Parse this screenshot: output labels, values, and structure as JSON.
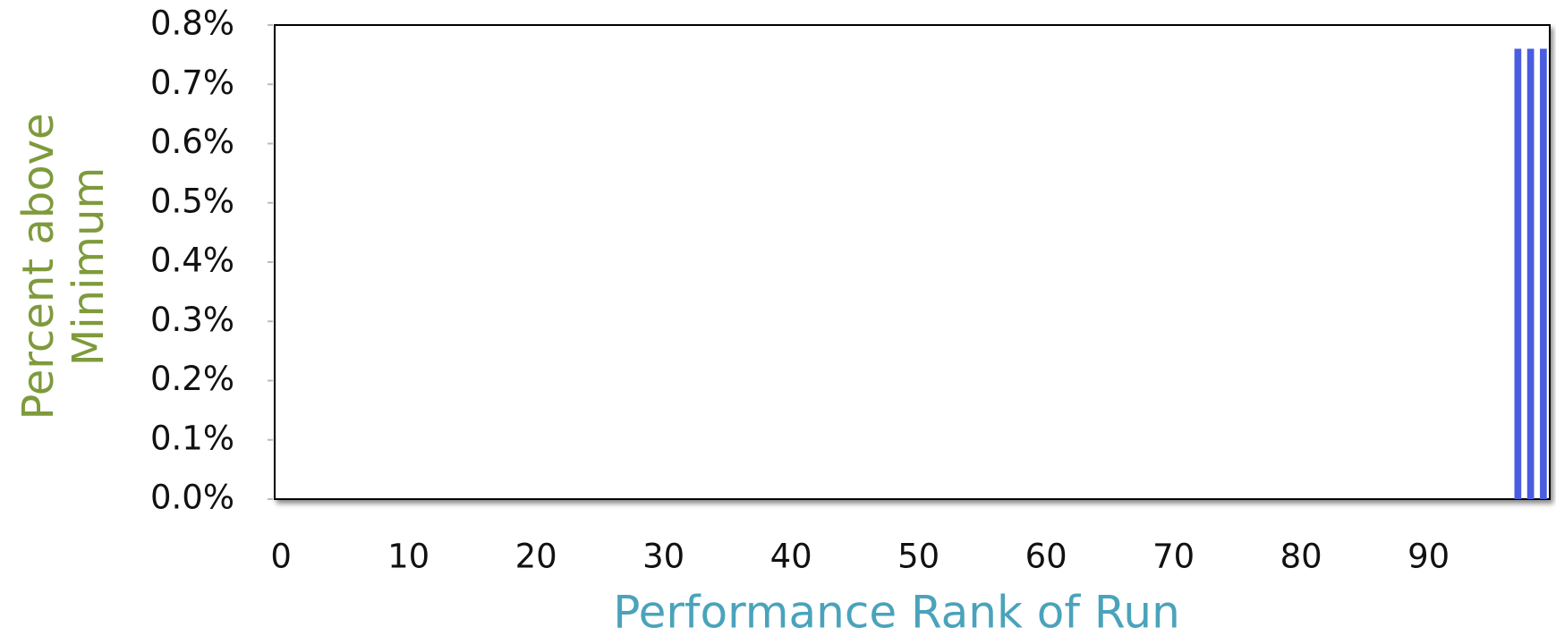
{
  "chart_data": {
    "type": "bar",
    "x_label": "Performance Rank of Run",
    "y_label": [
      "Percent above",
      "Minimum"
    ],
    "x": [
      0,
      1,
      2,
      3,
      4,
      5,
      6,
      7,
      8,
      9,
      10,
      11,
      12,
      13,
      14,
      15,
      16,
      17,
      18,
      19,
      20,
      21,
      22,
      23,
      24,
      25,
      26,
      27,
      28,
      29,
      30,
      31,
      32,
      33,
      34,
      35,
      36,
      37,
      38,
      39,
      40,
      41,
      42,
      43,
      44,
      45,
      46,
      47,
      48,
      49,
      50,
      51,
      52,
      53,
      54,
      55,
      56,
      57,
      58,
      59,
      60,
      61,
      62,
      63,
      64,
      65,
      66,
      67,
      68,
      69,
      70,
      71,
      72,
      73,
      74,
      75,
      76,
      77,
      78,
      79,
      80,
      81,
      82,
      83,
      84,
      85,
      86,
      87,
      88,
      89,
      90,
      91,
      92,
      93,
      94,
      95,
      96,
      97,
      98,
      99
    ],
    "values": [
      0,
      0,
      0,
      0,
      0,
      0,
      0,
      0,
      0,
      0,
      0,
      0,
      0,
      0,
      0,
      0,
      0,
      0,
      0,
      0,
      0,
      0,
      0,
      0,
      0,
      0,
      0,
      0,
      0,
      0,
      0,
      0,
      0,
      0,
      0,
      0,
      0,
      0,
      0,
      0,
      0,
      0,
      0,
      0,
      0,
      0,
      0,
      0,
      0,
      0,
      0,
      0,
      0,
      0,
      0,
      0,
      0,
      0,
      0,
      0,
      0,
      0,
      0,
      0,
      0,
      0,
      0,
      0,
      0,
      0,
      0,
      0,
      0,
      0,
      0,
      0,
      0,
      0,
      0,
      0,
      0,
      0,
      0,
      0,
      0,
      0,
      0,
      0,
      0,
      0,
      0,
      0,
      0,
      0,
      0,
      0,
      0,
      0.76,
      0.76,
      0.76
    ],
    "color": "#4a5ce0",
    "xlim": [
      -0.5,
      99.5
    ],
    "xticks": [
      0,
      10,
      20,
      30,
      40,
      50,
      60,
      70,
      80,
      90
    ],
    "ylim": [
      0,
      0.8
    ],
    "yticks": [
      {
        "value": 0,
        "label": "0.0%"
      },
      {
        "value": 0.1,
        "label": "0.1%"
      },
      {
        "value": 0.2,
        "label": "0.2%"
      },
      {
        "value": 0.3,
        "label": "0.3%"
      },
      {
        "value": 0.4,
        "label": "0.4%"
      },
      {
        "value": 0.5,
        "label": "0.5%"
      },
      {
        "value": 0.6,
        "label": "0.6%"
      },
      {
        "value": 0.7,
        "label": "0.7%"
      },
      {
        "value": 0.8,
        "label": "0.8%"
      }
    ]
  }
}
